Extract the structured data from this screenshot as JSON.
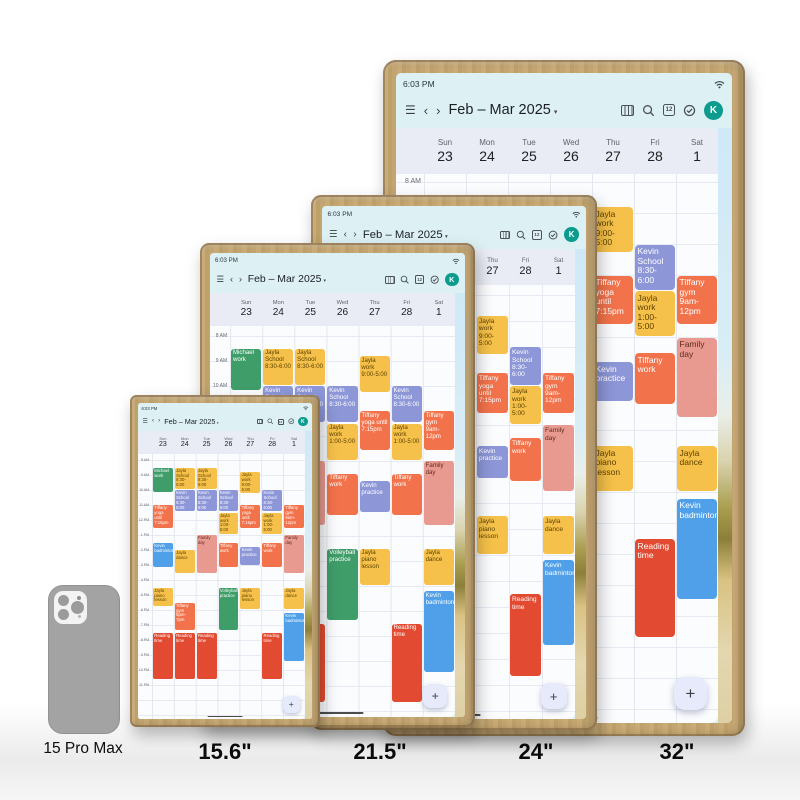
{
  "page": {
    "phone_label": "15 Pro Max",
    "size_labels": [
      "15.6\"",
      "21.5\"",
      "24\"",
      "32\""
    ]
  },
  "displays": [
    {
      "name": "15.6 inch display",
      "label": "15.6\""
    },
    {
      "name": "21.5 inch display",
      "label": "21.5\""
    },
    {
      "name": "24 inch display",
      "label": "24\""
    },
    {
      "name": "32 inch display",
      "label": "32\""
    }
  ],
  "calendar": {
    "status_time": "6:03 PM",
    "title": "Feb – Mar 2025",
    "date_icon_label": "12",
    "avatar_label": "K",
    "fab_label": "+",
    "days": [
      {
        "name": "Sun",
        "num": "23"
      },
      {
        "name": "Mon",
        "num": "24"
      },
      {
        "name": "Tue",
        "num": "25"
      },
      {
        "name": "Wed",
        "num": "26"
      },
      {
        "name": "Thu",
        "num": "27"
      },
      {
        "name": "Fri",
        "num": "28"
      },
      {
        "name": "Sat",
        "num": "1"
      }
    ],
    "hours": [
      "8 AM",
      "9 AM",
      "10 AM",
      "11 AM",
      "12 PM",
      "1 PM",
      "2 PM",
      "3 PM",
      "4 PM",
      "5 PM",
      "6 PM",
      "7 PM",
      "8 PM",
      "9 PM",
      "10 PM",
      "11 PM"
    ],
    "colors": {
      "yellow": {
        "bg": "#F6C14A",
        "fg": "#5D4200"
      },
      "purple": {
        "bg": "#8D97D8",
        "fg": "#FFFFFF"
      },
      "orange": {
        "bg": "#F2734B",
        "fg": "#FFFFFF"
      },
      "salmon": {
        "bg": "#E99A90",
        "fg": "#5F2A20"
      },
      "green": {
        "bg": "#3F9D69",
        "fg": "#FFFFFF"
      },
      "blue": {
        "bg": "#4FA0E8",
        "fg": "#FFFFFF"
      },
      "red": {
        "bg": "#E24B31",
        "fg": "#FFFFFF"
      },
      "avatar_bg": "#0D9B8E",
      "avatar_fg": "#FFFFFF",
      "fab_bg": "#E7EAFB",
      "header_bg": "#DDF1F5",
      "day_strip_bg": "#E9EBF5"
    },
    "events": [
      {
        "day": 0,
        "title": "Michael work",
        "color": "green",
        "start": 8.5,
        "end": 10.2
      },
      {
        "day": 0,
        "title": "Tiffany yoga until 7:15pm",
        "color": "orange",
        "start": 11,
        "end": 12.6
      },
      {
        "day": 0,
        "title": "Kevin badminton",
        "color": "blue",
        "start": 13.5,
        "end": 15.2
      },
      {
        "day": 0,
        "title": "Jayla piano lesson",
        "color": "yellow",
        "start": 16.5,
        "end": 17.8
      },
      {
        "day": 0,
        "title": "Reading time",
        "color": "red",
        "start": 19.5,
        "end": 22.7
      },
      {
        "day": 1,
        "title": "Jayla School 8:30-6:00",
        "color": "yellow",
        "start": 8.5,
        "end": 10
      },
      {
        "day": 1,
        "title": "Kevin School 8:30-6:00",
        "color": "purple",
        "start": 10,
        "end": 11.5
      },
      {
        "day": 1,
        "title": "Jayla dance",
        "color": "yellow",
        "start": 14,
        "end": 15.6
      },
      {
        "day": 1,
        "title": "Tiffany gym 6pm-7pm",
        "color": "orange",
        "start": 17.5,
        "end": 19.4
      },
      {
        "day": 1,
        "title": "Reading time",
        "color": "red",
        "start": 19.5,
        "end": 22.7
      },
      {
        "day": 2,
        "title": "Jayla School 8:30-6:00",
        "color": "yellow",
        "start": 8.5,
        "end": 10
      },
      {
        "day": 2,
        "title": "Kevin School 8:30-6:00",
        "color": "purple",
        "start": 10,
        "end": 11.5
      },
      {
        "day": 2,
        "title": "Family day",
        "color": "salmon",
        "start": 13,
        "end": 15.6
      },
      {
        "day": 2,
        "title": "Reading time",
        "color": "red",
        "start": 19.5,
        "end": 22.7
      },
      {
        "day": 3,
        "title": "Kevin School 8:30-6:00",
        "color": "purple",
        "start": 10,
        "end": 11.5
      },
      {
        "day": 3,
        "title": "Jayla work 1:00-5:00",
        "color": "yellow",
        "start": 11.5,
        "end": 13
      },
      {
        "day": 3,
        "title": "Tiffany work",
        "color": "orange",
        "start": 13.5,
        "end": 15.2
      },
      {
        "day": 3,
        "title": "Volleyball practice",
        "color": "green",
        "start": 16.5,
        "end": 19.4
      },
      {
        "day": 4,
        "title": "Jayla work 9:00-5:00",
        "color": "yellow",
        "start": 8.8,
        "end": 10.3
      },
      {
        "day": 4,
        "title": "Tiffany yoga until 7:15pm",
        "color": "orange",
        "start": 11,
        "end": 12.6
      },
      {
        "day": 4,
        "title": "Kevin practice",
        "color": "purple",
        "start": 13.8,
        "end": 15.1
      },
      {
        "day": 4,
        "title": "Jayla piano lesson",
        "color": "yellow",
        "start": 16.5,
        "end": 18
      },
      {
        "day": 5,
        "title": "Kevin School 8:30-6:00",
        "color": "purple",
        "start": 10,
        "end": 11.5
      },
      {
        "day": 5,
        "title": "Jayla work 1:00-5:00",
        "color": "yellow",
        "start": 11.5,
        "end": 13
      },
      {
        "day": 5,
        "title": "Tiffany work",
        "color": "orange",
        "start": 13.5,
        "end": 15.2
      },
      {
        "day": 5,
        "title": "Reading time",
        "color": "red",
        "start": 19.5,
        "end": 22.7
      },
      {
        "day": 6,
        "title": "Tiffany gym 9am-12pm",
        "color": "orange",
        "start": 11,
        "end": 12.6
      },
      {
        "day": 6,
        "title": "Family day",
        "color": "salmon",
        "start": 13,
        "end": 15.6
      },
      {
        "day": 6,
        "title": "Jayla dance",
        "color": "yellow",
        "start": 16.5,
        "end": 18
      },
      {
        "day": 6,
        "title": "Kevin badminton",
        "color": "blue",
        "start": 18.2,
        "end": 21.5
      }
    ]
  }
}
